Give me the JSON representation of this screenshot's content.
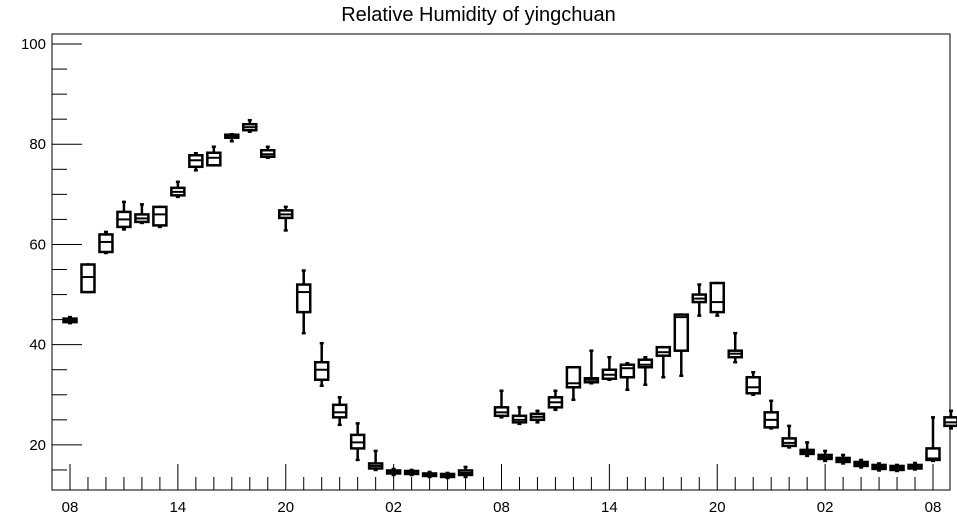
{
  "chart_data": {
    "type": "box",
    "title": "Relative Humidity of yingchuan",
    "xlabel": "",
    "ylabel": "",
    "ylim": [
      11,
      102
    ],
    "y_ticks": [
      20,
      40,
      60,
      80,
      100
    ],
    "x_tick_labels": [
      "08",
      "14",
      "20",
      "02",
      "08",
      "14",
      "20",
      "02",
      "08"
    ],
    "x_tick_slots": [
      0,
      6,
      12,
      18,
      24,
      30,
      36,
      42,
      48
    ],
    "grid": false,
    "boxes": [
      {
        "slot": 0,
        "q1": 44.5,
        "median": 44.8,
        "q3": 45.2,
        "whisker_low": 44.3,
        "whisker_high": 45.5
      },
      {
        "slot": 1,
        "q1": 50.5,
        "median": 53.5,
        "q3": 56.0,
        "whisker_low": 50.5,
        "whisker_high": 56.0
      },
      {
        "slot": 2,
        "q1": 58.5,
        "median": 60.5,
        "q3": 62.0,
        "whisker_low": 58.3,
        "whisker_high": 62.5
      },
      {
        "slot": 3,
        "q1": 63.5,
        "median": 65.0,
        "q3": 66.5,
        "whisker_low": 63.0,
        "whisker_high": 68.5
      },
      {
        "slot": 4,
        "q1": 64.5,
        "median": 65.2,
        "q3": 66.0,
        "whisker_low": 64.3,
        "whisker_high": 68.0
      },
      {
        "slot": 5,
        "q1": 63.8,
        "median": 66.0,
        "q3": 67.5,
        "whisker_low": 63.5,
        "whisker_high": 67.5
      },
      {
        "slot": 6,
        "q1": 69.8,
        "median": 70.5,
        "q3": 71.3,
        "whisker_low": 69.5,
        "whisker_high": 72.5
      },
      {
        "slot": 7,
        "q1": 75.5,
        "median": 76.8,
        "q3": 77.8,
        "whisker_low": 74.8,
        "whisker_high": 78.2
      },
      {
        "slot": 8,
        "q1": 75.8,
        "median": 77.3,
        "q3": 78.3,
        "whisker_low": 75.8,
        "whisker_high": 79.5
      },
      {
        "slot": 9,
        "q1": 81.3,
        "median": 81.6,
        "q3": 81.9,
        "whisker_low": 80.6,
        "whisker_high": 82.0
      },
      {
        "slot": 10,
        "q1": 82.8,
        "median": 83.4,
        "q3": 84.0,
        "whisker_low": 82.5,
        "whisker_high": 84.8
      },
      {
        "slot": 11,
        "q1": 77.5,
        "median": 78.0,
        "q3": 78.8,
        "whisker_low": 77.3,
        "whisker_high": 79.5
      },
      {
        "slot": 12,
        "q1": 65.3,
        "median": 66.0,
        "q3": 66.8,
        "whisker_low": 62.8,
        "whisker_high": 67.5
      },
      {
        "slot": 13,
        "q1": 46.5,
        "median": 50.5,
        "q3": 52.0,
        "whisker_low": 42.3,
        "whisker_high": 54.8
      },
      {
        "slot": 14,
        "q1": 33.0,
        "median": 35.0,
        "q3": 36.5,
        "whisker_low": 31.8,
        "whisker_high": 40.3
      },
      {
        "slot": 15,
        "q1": 25.5,
        "median": 26.5,
        "q3": 28.0,
        "whisker_low": 24.0,
        "whisker_high": 29.5
      },
      {
        "slot": 16,
        "q1": 19.3,
        "median": 20.5,
        "q3": 22.0,
        "whisker_low": 17.0,
        "whisker_high": 24.3
      },
      {
        "slot": 17,
        "q1": 15.3,
        "median": 15.8,
        "q3": 16.3,
        "whisker_low": 15.0,
        "whisker_high": 18.8
      },
      {
        "slot": 18,
        "q1": 14.3,
        "median": 14.6,
        "q3": 14.9,
        "whisker_low": 14.0,
        "whisker_high": 15.2
      },
      {
        "slot": 19,
        "q1": 14.2,
        "median": 14.5,
        "q3": 14.8,
        "whisker_low": 14.0,
        "whisker_high": 15.0
      },
      {
        "slot": 20,
        "q1": 13.8,
        "median": 14.1,
        "q3": 14.3,
        "whisker_low": 13.6,
        "whisker_high": 14.6
      },
      {
        "slot": 21,
        "q1": 13.6,
        "median": 13.9,
        "q3": 14.2,
        "whisker_low": 13.4,
        "whisker_high": 14.4
      },
      {
        "slot": 22,
        "q1": 14.0,
        "median": 14.4,
        "q3": 14.9,
        "whisker_low": 13.6,
        "whisker_high": 15.6
      },
      {
        "slot": 24,
        "q1": 25.8,
        "median": 26.5,
        "q3": 27.5,
        "whisker_low": 25.5,
        "whisker_high": 30.8
      },
      {
        "slot": 25,
        "q1": 24.5,
        "median": 25.0,
        "q3": 25.8,
        "whisker_low": 24.2,
        "whisker_high": 27.5
      },
      {
        "slot": 26,
        "q1": 25.0,
        "median": 25.6,
        "q3": 26.2,
        "whisker_low": 24.5,
        "whisker_high": 26.8
      },
      {
        "slot": 27,
        "q1": 27.5,
        "median": 28.5,
        "q3": 29.5,
        "whisker_low": 27.0,
        "whisker_high": 30.8
      },
      {
        "slot": 28,
        "q1": 31.5,
        "median": 32.3,
        "q3": 35.5,
        "whisker_low": 29.0,
        "whisker_high": 35.5
      },
      {
        "slot": 29,
        "q1": 32.5,
        "median": 33.0,
        "q3": 33.3,
        "whisker_low": 32.3,
        "whisker_high": 38.8
      },
      {
        "slot": 30,
        "q1": 33.2,
        "median": 34.0,
        "q3": 35.0,
        "whisker_low": 33.0,
        "whisker_high": 37.5
      },
      {
        "slot": 31,
        "q1": 33.5,
        "median": 35.3,
        "q3": 36.0,
        "whisker_low": 31.0,
        "whisker_high": 36.3
      },
      {
        "slot": 32,
        "q1": 35.5,
        "median": 36.0,
        "q3": 37.0,
        "whisker_low": 32.0,
        "whisker_high": 37.5
      },
      {
        "slot": 33,
        "q1": 37.8,
        "median": 38.5,
        "q3": 39.5,
        "whisker_low": 33.5,
        "whisker_high": 39.5
      },
      {
        "slot": 34,
        "q1": 38.8,
        "median": 45.5,
        "q3": 46.0,
        "whisker_low": 33.8,
        "whisker_high": 46.0
      },
      {
        "slot": 35,
        "q1": 48.5,
        "median": 49.2,
        "q3": 50.0,
        "whisker_low": 45.8,
        "whisker_high": 52.0
      },
      {
        "slot": 36,
        "q1": 46.5,
        "median": 48.5,
        "q3": 52.3,
        "whisker_low": 45.8,
        "whisker_high": 52.3
      },
      {
        "slot": 37,
        "q1": 37.5,
        "median": 38.2,
        "q3": 38.8,
        "whisker_low": 36.5,
        "whisker_high": 42.3
      },
      {
        "slot": 38,
        "q1": 30.3,
        "median": 31.5,
        "q3": 33.5,
        "whisker_low": 30.0,
        "whisker_high": 34.5
      },
      {
        "slot": 39,
        "q1": 23.5,
        "median": 25.0,
        "q3": 26.5,
        "whisker_low": 23.3,
        "whisker_high": 28.8
      },
      {
        "slot": 40,
        "q1": 19.8,
        "median": 20.4,
        "q3": 21.3,
        "whisker_low": 19.5,
        "whisker_high": 23.8
      },
      {
        "slot": 41,
        "q1": 18.2,
        "median": 18.6,
        "q3": 19.0,
        "whisker_low": 17.8,
        "whisker_high": 20.5
      },
      {
        "slot": 42,
        "q1": 17.2,
        "median": 17.6,
        "q3": 18.0,
        "whisker_low": 16.8,
        "whisker_high": 18.8
      },
      {
        "slot": 43,
        "q1": 16.6,
        "median": 17.0,
        "q3": 17.4,
        "whisker_low": 16.3,
        "whisker_high": 18.0
      },
      {
        "slot": 44,
        "q1": 15.8,
        "median": 16.2,
        "q3": 16.6,
        "whisker_low": 15.5,
        "whisker_high": 17.0
      },
      {
        "slot": 45,
        "q1": 15.2,
        "median": 15.6,
        "q3": 16.0,
        "whisker_low": 14.9,
        "whisker_high": 16.3
      },
      {
        "slot": 46,
        "q1": 15.0,
        "median": 15.4,
        "q3": 15.8,
        "whisker_low": 14.8,
        "whisker_high": 16.0
      },
      {
        "slot": 47,
        "q1": 15.3,
        "median": 15.7,
        "q3": 16.0,
        "whisker_low": 15.1,
        "whisker_high": 16.4
      },
      {
        "slot": 48,
        "q1": 17.0,
        "median": 17.3,
        "q3": 19.3,
        "whisker_low": 16.8,
        "whisker_high": 25.5
      },
      {
        "slot": 49,
        "q1": 23.8,
        "median": 24.5,
        "q3": 25.5,
        "whisker_low": 23.3,
        "whisker_high": 26.8
      }
    ]
  }
}
